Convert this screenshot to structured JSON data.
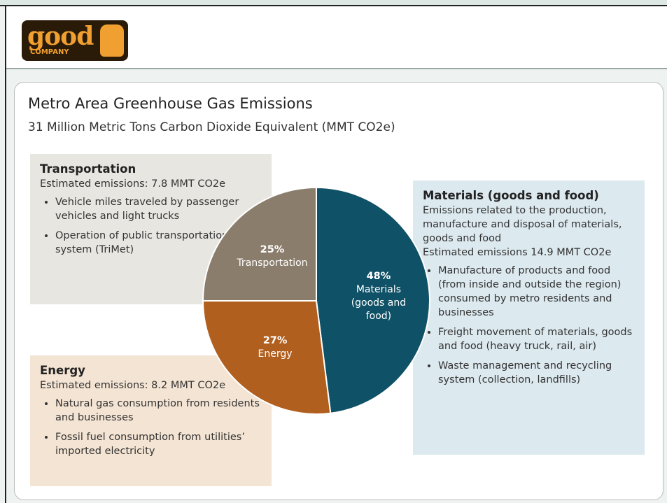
{
  "logo": {
    "word": "good",
    "sub": "COMPANY"
  },
  "chart_data": {
    "type": "pie",
    "title": "Metro Area Greenhouse Gas Emissions",
    "subtitle": "31 Million Metric Tons Carbon Dioxide Equivalent (MMT CO2e)",
    "categories": [
      "Materials (goods and food)",
      "Energy",
      "Transportation"
    ],
    "values": [
      48,
      27,
      25
    ],
    "value_labels": [
      "48%",
      "27%",
      "25%"
    ],
    "colors": [
      "#0f5166",
      "#b15f1f",
      "#8b7d6c"
    ]
  },
  "panels": [
    {
      "title": "Transportation",
      "lines": [
        "Estimated emissions: 7.8 MMT CO2e"
      ],
      "bullets": [
        "Vehicle miles traveled by passenger vehicles and light trucks",
        "Operation of public transportation system (TriMet)"
      ]
    },
    {
      "title": "Energy",
      "lines": [
        "Estimated emissions: 8.2 MMT CO2e"
      ],
      "bullets": [
        "Natural gas consumption from residents and businesses",
        "Fossil fuel consumption from utilities’ imported electricity"
      ]
    },
    {
      "title": "Materials (goods and food)",
      "lines": [
        "Emissions related to the production, manufacture and disposal of materials, goods and food",
        "Estimated emissions 14.9 MMT CO2e"
      ],
      "bullets": [
        "Manufacture of products and food (from inside and outside the region) consumed by metro residents and businesses",
        "Freight movement of materials, goods and food (heavy truck, rail, air)",
        "Waste management and recycling system (collection, landfills)"
      ]
    }
  ]
}
